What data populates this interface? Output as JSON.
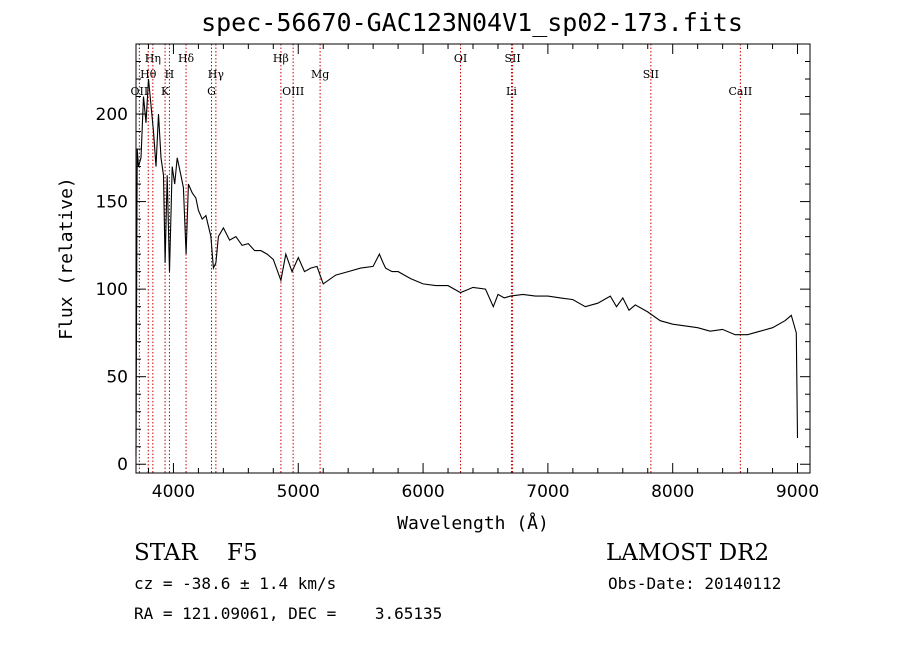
{
  "chart_data": {
    "type": "line",
    "title": "spec-56670-GAC123N04V1_sp02-173.fits",
    "xlabel": "Wavelength (Å)",
    "ylabel": "Flux (relative)",
    "xlim": [
      3700,
      9100
    ],
    "ylim": [
      -5,
      240
    ],
    "xticks": [
      4000,
      5000,
      6000,
      7000,
      8000,
      9000
    ],
    "yticks": [
      0,
      50,
      100,
      150,
      200
    ],
    "series": [
      {
        "x": [
          3700,
          3710,
          3720,
          3740,
          3760,
          3780,
          3800,
          3820,
          3840,
          3860,
          3880,
          3900,
          3920,
          3933,
          3950,
          3968,
          3990,
          4010,
          4030,
          4060,
          4080,
          4101,
          4120,
          4150,
          4180,
          4200,
          4230,
          4260,
          4300,
          4320,
          4340,
          4360,
          4400,
          4450,
          4500,
          4550,
          4600,
          4650,
          4700,
          4750,
          4800,
          4861,
          4900,
          4950,
          5000,
          5050,
          5100,
          5150,
          5200,
          5300,
          5400,
          5500,
          5600,
          5650,
          5680,
          5700,
          5750,
          5800,
          5900,
          6000,
          6100,
          6200,
          6300,
          6400,
          6500,
          6563,
          6600,
          6650,
          6700,
          6800,
          6900,
          7000,
          7100,
          7200,
          7300,
          7400,
          7500,
          7550,
          7600,
          7650,
          7700,
          7800,
          7900,
          8000,
          8100,
          8200,
          8300,
          8400,
          8500,
          8600,
          8700,
          8800,
          8900,
          8950,
          8990,
          9000
        ],
        "y": [
          5,
          180,
          170,
          175,
          210,
          195,
          220,
          205,
          190,
          170,
          200,
          175,
          165,
          115,
          165,
          110,
          170,
          160,
          175,
          165,
          158,
          120,
          160,
          155,
          152,
          145,
          140,
          142,
          130,
          112,
          115,
          130,
          135,
          128,
          130,
          125,
          126,
          122,
          122,
          120,
          117,
          105,
          120,
          110,
          118,
          110,
          112,
          113,
          103,
          108,
          110,
          112,
          113,
          120,
          115,
          112,
          110,
          110,
          106,
          103,
          102,
          102,
          98,
          101,
          100,
          90,
          97,
          95,
          96,
          97,
          96,
          96,
          95,
          94,
          90,
          92,
          96,
          90,
          95,
          88,
          91,
          87,
          82,
          80,
          79,
          78,
          76,
          77,
          74,
          74,
          76,
          78,
          82,
          85,
          75,
          15
        ]
      }
    ],
    "line_markers": [
      {
        "label": "OII",
        "x": 3727,
        "row": 3
      },
      {
        "label": "Hθ",
        "x": 3798,
        "row": 2
      },
      {
        "label": "Hη",
        "x": 3835,
        "row": 1
      },
      {
        "label": "H",
        "x": 3968,
        "row": 2
      },
      {
        "label": "K",
        "x": 3933,
        "row": 3
      },
      {
        "label": "Hδ",
        "x": 4101,
        "row": 1
      },
      {
        "label": "Hγ",
        "x": 4340,
        "row": 2
      },
      {
        "label": "G",
        "x": 4305,
        "row": 3
      },
      {
        "label": "Hβ",
        "x": 4861,
        "row": 1
      },
      {
        "label": "OIII",
        "x": 4959,
        "row": 3
      },
      {
        "label": "Mg",
        "x": 5175,
        "row": 2
      },
      {
        "label": "OI",
        "x": 6300,
        "row": 1
      },
      {
        "label": "SII",
        "x": 6717,
        "row": 1
      },
      {
        "label": "Li",
        "x": 6708,
        "row": 3
      },
      {
        "label": "SII",
        "x": 7825,
        "row": 2
      },
      {
        "label": "CaII",
        "x": 8542,
        "row": 3
      }
    ]
  },
  "info": {
    "class": "STAR    F5",
    "survey": "LAMOST DR2",
    "cz": "cz = -38.6 ± 1.4 km/s",
    "obs_date": "Obs-Date: 20140112",
    "radec": "RA = 121.09061, DEC =    3.65135"
  },
  "colors": {
    "spectrum": "#000000",
    "marker": "#cc0000"
  }
}
